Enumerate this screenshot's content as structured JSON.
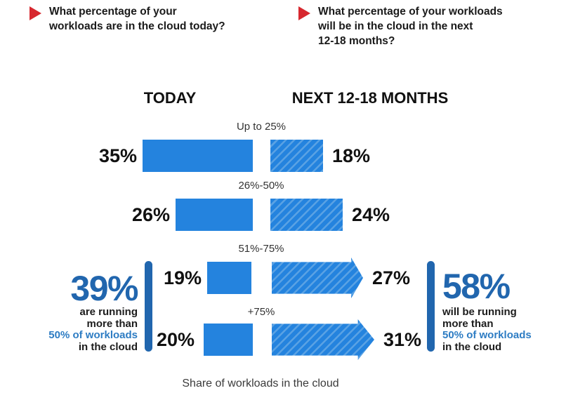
{
  "colors": {
    "bar_blue": "#2483DE",
    "hatch_light_blue": "#5AA2E4",
    "deep_blue": "#2166AE",
    "highlight_blue": "#2D7CC3",
    "bullet_red": "#D7282F"
  },
  "questions": {
    "left": "What percentage of your\nworkloads are in the cloud today?",
    "right": "What percentage of your workloads\nwill be in the cloud in the next\n12-18 months?"
  },
  "columns": {
    "today": "TODAY",
    "next": "NEXT 12-18 MONTHS"
  },
  "rows": [
    {
      "category": "Up to 25%",
      "today": "35%",
      "next": "18%"
    },
    {
      "category": "26%-50%",
      "today": "26%",
      "next": "24%"
    },
    {
      "category": "51%-75%",
      "today": "19%",
      "next": "27%"
    },
    {
      "category": "+75%",
      "today": "20%",
      "next": "31%"
    }
  ],
  "callouts": {
    "left": {
      "value": "39%",
      "line1": "are running",
      "line2": "more than",
      "highlight": "50% of workloads",
      "line3": "in the cloud"
    },
    "right": {
      "value": "58%",
      "line1": "will be running",
      "line2": "more than",
      "highlight": "50% of workloads",
      "line3": "in the cloud"
    }
  },
  "caption": "Share of workloads in the cloud",
  "chart_data": {
    "type": "bar",
    "orientation": "horizontal-diverging",
    "categories": [
      "Up to 25%",
      "26%-50%",
      "51%-75%",
      "+75%"
    ],
    "series": [
      {
        "name": "Today",
        "values": [
          35,
          26,
          19,
          20
        ],
        "style": "solid"
      },
      {
        "name": "Next 12-18 months",
        "values": [
          18,
          24,
          27,
          31
        ],
        "style": "hatched, rows 3-4 drawn as right arrows"
      }
    ],
    "annotations": [
      {
        "side": "left",
        "value": 39,
        "text": "39% are running more than 50% of workloads in the cloud"
      },
      {
        "side": "right",
        "value": 58,
        "text": "58% will be running more than 50% of workloads in the cloud"
      }
    ],
    "xlabel": "Share of workloads in the cloud",
    "legend_position": "none",
    "grid": false
  }
}
